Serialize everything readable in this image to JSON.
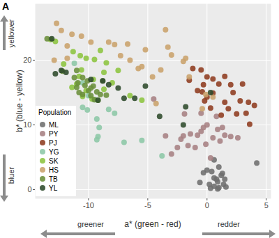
{
  "chart_data": {
    "type": "scatter",
    "title": "A",
    "x_label": "a* (green - red)",
    "y_label": "b* (blue - yellow)",
    "annotations": {
      "x_low": "greener",
      "x_high": "redder",
      "y_low": "bluer",
      "y_high": "yellower"
    },
    "legend_title": "Population",
    "legend": "bottom-left",
    "grid": true,
    "xlim": [
      -14.5,
      5.4
    ],
    "ylim": [
      -1.4,
      28.7
    ],
    "xticks": [
      -10,
      -5,
      0,
      5
    ],
    "yticks": [
      0,
      10,
      20
    ],
    "series": [
      {
        "name": "ML",
        "color": "#6E6E6E",
        "x": [
          0,
          -0.3,
          0.4,
          1,
          1.3,
          0.6,
          0.9,
          0.2,
          0.6,
          1,
          1.4,
          0.3,
          1.5,
          0.8,
          1.2,
          4.2,
          0.6,
          -0.6,
          1.6,
          0.9
        ],
        "y": [
          3,
          2.6,
          2.8,
          3.5,
          2.5,
          1.8,
          1.2,
          0.8,
          0.5,
          0.3,
          0.8,
          0.2,
          1.6,
          1.6,
          2.2,
          4.1,
          4.6,
          1.1,
          0.4,
          0.1
        ]
      },
      {
        "name": "PY",
        "color": "#A67F82",
        "x": [
          -3,
          -2.5,
          -2.2,
          -2,
          -1.6,
          -1.4,
          -1,
          -0.8,
          -0.5,
          -0.3,
          0,
          0.5,
          0.9,
          1.3,
          1.5,
          2,
          2.6,
          -3.5,
          -0.1,
          1.1,
          -4.5,
          -0.5,
          0.8,
          0.3,
          -1.9
        ],
        "y": [
          5.5,
          6.5,
          7.8,
          8.3,
          6.8,
          8.6,
          6.5,
          8.4,
          9,
          9.6,
          10,
          8,
          9.3,
          9.6,
          8.4,
          8.2,
          8,
          8.3,
          7,
          7.5,
          14,
          11.8,
          11.3,
          4.9,
          11.7
        ]
      },
      {
        "name": "PJ",
        "color": "#8E3B1F",
        "x": [
          -1.2,
          -0.5,
          0,
          -0.3,
          0.5,
          1,
          1.5,
          2,
          3,
          2.8,
          3.5,
          3.3,
          3.6,
          2.5,
          1.5,
          1.8,
          0.5,
          0,
          -0.2,
          -0.8,
          0.3,
          -1.5,
          4,
          1.2,
          2.2,
          -0.4
        ],
        "y": [
          18.7,
          18.5,
          17.4,
          16.2,
          17.1,
          16.3,
          17.5,
          16.2,
          16.3,
          13.7,
          13.5,
          11.8,
          10.1,
          11.7,
          13.5,
          12.5,
          14.9,
          14.3,
          13.7,
          15.3,
          12.6,
          16.9,
          13,
          11.5,
          15,
          15.1
        ]
      },
      {
        "name": "YG",
        "color": "#8CC7A6",
        "x": [
          -11.2,
          -10.5,
          -10.5,
          -10.1,
          -9.3,
          -9.1,
          -9.2,
          -9.3,
          -7.8,
          -7,
          -5.5,
          -3.8,
          -10,
          -9.5,
          -8.3
        ],
        "y": [
          19.5,
          16.5,
          12.7,
          12.3,
          10.9,
          9.6,
          8.2,
          7.7,
          11.8,
          7.3,
          7.6,
          5.2,
          14.5,
          13.9,
          12.4
        ]
      },
      {
        "name": "SK",
        "color": "#8CC43F",
        "x": [
          -13.2,
          -12.8,
          -11.3,
          -10.7,
          -10.2,
          -9.5,
          -8.5,
          -9,
          -10.6,
          -10.8,
          -11,
          -10.2,
          -9.7,
          -9.2,
          -8.7,
          -8,
          -7.5,
          -8.7,
          -10.5,
          -11.4,
          -6.5,
          -5.5,
          -9.6,
          -12.1
        ],
        "y": [
          23.2,
          22.9,
          21.3,
          20.7,
          20.3,
          20.1,
          19.6,
          21.5,
          18.5,
          17.5,
          16.3,
          15.3,
          14,
          13.8,
          15.5,
          16.5,
          18.4,
          18.1,
          14.4,
          15.8,
          14.5,
          13.8,
          17,
          19.4
        ]
      },
      {
        "name": "HS",
        "color": "#C9A26B",
        "x": [
          -12.7,
          -12.3,
          -11.4,
          -10.6,
          -11.8,
          -9.8,
          -8.3,
          -7.8,
          -7.3,
          -6.5,
          -6.7,
          -5.8,
          -5.5,
          -5.2,
          -4.6,
          -3.9,
          -3.5,
          -3.3,
          -2,
          -1.5,
          -1.8,
          -0.1,
          -0.4,
          0.5,
          -3,
          -12.9,
          -4.3,
          -11.8
        ],
        "y": [
          25.7,
          24.6,
          24,
          23.7,
          22.2,
          22.8,
          22.8,
          22.4,
          20.7,
          20,
          22.5,
          18.7,
          19,
          21.6,
          17.4,
          18.5,
          24.7,
          22,
          19.8,
          17.4,
          20.3,
          14.7,
          12.5,
          14.3,
          20.8,
          20,
          13.3,
          20.3
        ]
      },
      {
        "name": "TB",
        "color": "#6A8E3A",
        "x": [
          -13.5,
          -11,
          -10.8,
          -10.5,
          -10.3,
          -10,
          -9.8,
          -9.6,
          -9.3,
          -9,
          -8.8,
          -10.5,
          -11.2,
          -10.1,
          -9.5,
          -11,
          -8.5,
          -10.9,
          -9.8,
          -12.2
        ],
        "y": [
          23.3,
          15.8,
          15,
          14.7,
          16.1,
          15.3,
          14.5,
          16,
          15.1,
          14.7,
          16.8,
          17.3,
          17.3,
          16.8,
          13.9,
          18.4,
          14.6,
          16.5,
          15.7,
          18.3
        ]
      },
      {
        "name": "YL",
        "color": "#2E4A2B",
        "x": [
          -13.1,
          -12.3,
          -11.9,
          -9.2,
          -8.8,
          -8.3,
          -7.5,
          -7,
          -6.1,
          -4,
          -2,
          -1.8,
          -5.2,
          0.3,
          -9.8,
          -12.8
        ],
        "y": [
          23.3,
          18.4,
          18.1,
          13.8,
          16.8,
          16.2,
          15.7,
          14.1,
          14.1,
          11.3,
          10,
          12.8,
          16,
          15,
          17,
          17.9
        ]
      }
    ]
  }
}
